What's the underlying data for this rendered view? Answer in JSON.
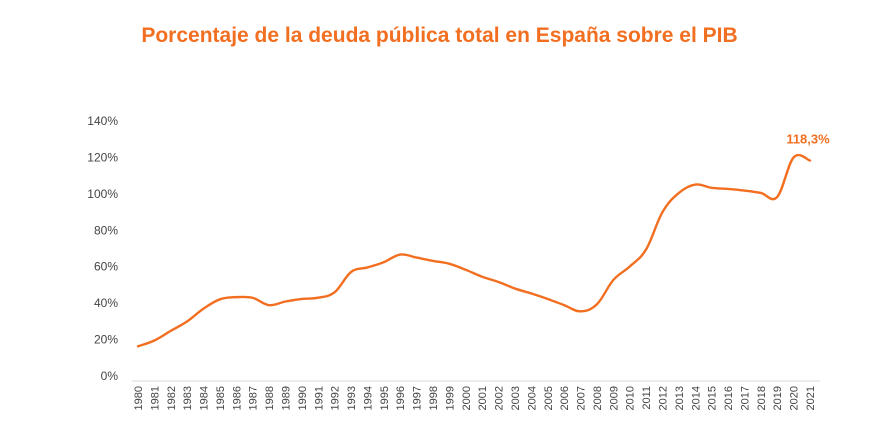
{
  "chart_data": {
    "type": "line",
    "title": "Porcentaje de la deuda pública total en España sobre el PIB",
    "xlabel": "",
    "ylabel": "",
    "ylim": [
      0,
      140
    ],
    "y_ticks": [
      "0%",
      "20%",
      "40%",
      "60%",
      "80%",
      "100%",
      "120%",
      "140%"
    ],
    "y_tick_values": [
      0,
      20,
      40,
      60,
      80,
      100,
      120,
      140
    ],
    "grid": false,
    "legend": "none",
    "line_color": "#f26f21",
    "x": [
      "1980",
      "1981",
      "1982",
      "1983",
      "1984",
      "1985",
      "1986",
      "1987",
      "1988",
      "1989",
      "1990",
      "1991",
      "1992",
      "1993",
      "1994",
      "1995",
      "1996",
      "1997",
      "1998",
      "1999",
      "2000",
      "2001",
      "2002",
      "2003",
      "2004",
      "2005",
      "2006",
      "2007",
      "2008",
      "2009",
      "2010",
      "2011",
      "2012",
      "2013",
      "2014",
      "2015",
      "2016",
      "2017",
      "2018",
      "2019",
      "2020",
      "2021"
    ],
    "values": [
      16.3,
      19.5,
      24.8,
      30,
      37,
      42.1,
      43.3,
      42.9,
      38.9,
      40.9,
      42.3,
      43,
      46,
      57.1,
      59.6,
      62.5,
      66.7,
      65,
      63.2,
      61.6,
      58.3,
      54.5,
      51.6,
      48,
      45.3,
      42.3,
      38.9,
      35.5,
      39.4,
      52.7,
      60.1,
      69.5,
      90,
      100.5,
      105.1,
      103.3,
      102.7,
      101.8,
      100.5,
      98.3,
      120,
      118.3
    ],
    "end_label": "118,3%"
  }
}
